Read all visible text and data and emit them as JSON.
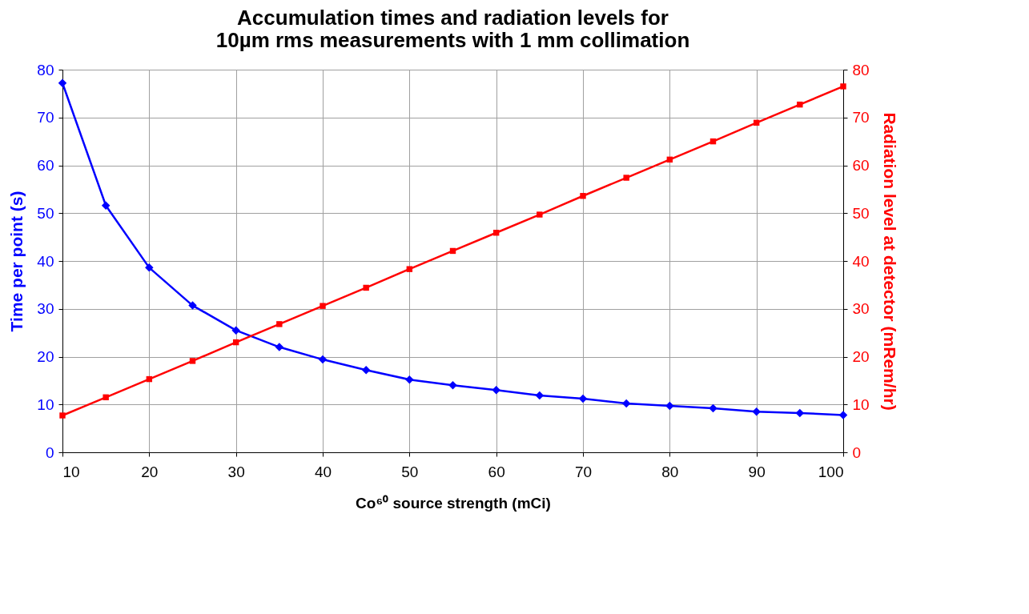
{
  "chart_data": {
    "type": "line",
    "title": "Accumulation times and radiation levels for\n10µm rms measurements with 1 mm collimation",
    "xlabel": "Co⁶⁰ source strength (mCi)",
    "ylabel": "Time per point (s)",
    "y2label": "Radiation level at detector (mRem/hr)",
    "x": [
      10,
      15,
      20,
      25,
      30,
      35,
      40,
      45,
      50,
      55,
      60,
      65,
      70,
      75,
      80,
      85,
      90,
      95,
      100
    ],
    "series": [
      {
        "color": "#0000ff",
        "marker": "diamond",
        "values": [
          77.2,
          51.6,
          38.6,
          30.7,
          25.5,
          22.0,
          19.4,
          17.2,
          15.2,
          14.0,
          13.0,
          11.9,
          11.2,
          10.2,
          9.7,
          9.2,
          8.5,
          8.2,
          7.8
        ]
      },
      {
        "color": "#ff0000",
        "marker": "square",
        "axis": "y2",
        "values": [
          7.7,
          11.5,
          15.3,
          19.1,
          23.0,
          26.8,
          30.6,
          34.4,
          38.3,
          42.1,
          45.9,
          49.7,
          53.6,
          57.4,
          61.2,
          65.0,
          68.9,
          72.7,
          76.5
        ]
      }
    ],
    "xlim": [
      10,
      100
    ],
    "xticks": [
      10,
      20,
      30,
      40,
      50,
      60,
      70,
      80,
      90,
      100
    ],
    "ylim": [
      0,
      80
    ],
    "yticks": [
      0,
      10,
      20,
      30,
      40,
      50,
      60,
      70,
      80
    ],
    "y2lim": [
      0,
      80
    ],
    "y2ticks": [
      0,
      10,
      20,
      30,
      40,
      50,
      60,
      70,
      80
    ],
    "grid": true,
    "line_style": "solid"
  }
}
